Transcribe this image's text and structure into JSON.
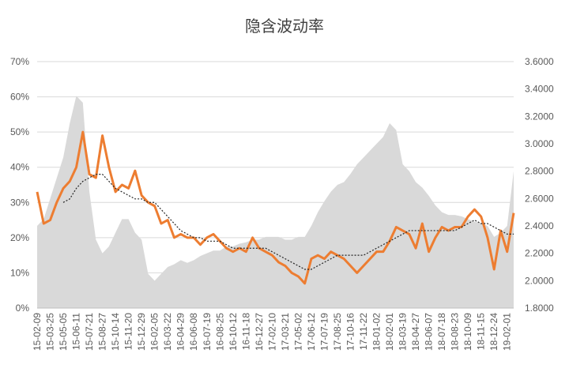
{
  "chart_data": {
    "type": "line",
    "title": "隐含波动率",
    "categories": [
      "15-02-09",
      null,
      "15-03-25",
      null,
      "15-05-05",
      null,
      "15-06-11",
      null,
      "15-07-21",
      null,
      "15-08-27",
      null,
      "15-10-14",
      null,
      "15-11-20",
      null,
      "15-12-29",
      null,
      "16-02-05",
      null,
      "16-03-22",
      null,
      "16-04-29",
      null,
      "16-06-08",
      null,
      "16-07-19",
      null,
      "16-08-25",
      null,
      "16-10-12",
      null,
      "16-11-18",
      null,
      "16-12-27",
      null,
      "17-02-10",
      null,
      "17-03-21",
      null,
      "17-05-02",
      null,
      "17-06-12",
      null,
      "17-07-19",
      null,
      "17-08-25",
      null,
      "17-10-16",
      null,
      "17-11-22",
      null,
      "18-01-02",
      null,
      "18-02-01",
      null,
      "18-03-19",
      null,
      "18-04-27",
      null,
      "18-06-07",
      null,
      "18-07-18",
      null,
      "18-08-23",
      null,
      "18-10-09",
      null,
      "18-11-15",
      null,
      "18-12-24",
      null,
      "19-02-01",
      null
    ],
    "series": [
      {
        "type": "area",
        "axis": "y2",
        "color": "#d9d9d9",
        "values": [
          2.4,
          2.45,
          2.6,
          2.75,
          2.9,
          3.15,
          3.35,
          3.3,
          2.65,
          2.3,
          2.2,
          2.25,
          2.35,
          2.45,
          2.45,
          2.35,
          2.3,
          2.05,
          2.0,
          2.05,
          2.1,
          2.12,
          2.15,
          2.13,
          2.15,
          2.18,
          2.2,
          2.22,
          2.22,
          2.25,
          2.25,
          2.27,
          2.28,
          2.3,
          2.3,
          2.32,
          2.32,
          2.32,
          2.3,
          2.3,
          2.32,
          2.32,
          2.4,
          2.5,
          2.58,
          2.65,
          2.7,
          2.72,
          2.78,
          2.85,
          2.9,
          2.95,
          3.0,
          3.05,
          3.15,
          3.1,
          2.85,
          2.8,
          2.72,
          2.68,
          2.62,
          2.55,
          2.5,
          2.48,
          2.48,
          2.47,
          2.45,
          2.43,
          2.42,
          2.4,
          2.32,
          2.35,
          2.4,
          2.8
        ]
      },
      {
        "type": "line",
        "color": "#ed7d31",
        "values": [
          33,
          24,
          25,
          30,
          34,
          36,
          40,
          50,
          38,
          37,
          49,
          40,
          33,
          35,
          34,
          39,
          32,
          30,
          29,
          24,
          25,
          20,
          21,
          20,
          20,
          18,
          20,
          21,
          19,
          17,
          16,
          17,
          16,
          20,
          17,
          16,
          15,
          13,
          12,
          10,
          9,
          7,
          14,
          15,
          14,
          16,
          15,
          14,
          12,
          10,
          12,
          14,
          16,
          16,
          19,
          23,
          22,
          21,
          17,
          24,
          16,
          20,
          23,
          22,
          23,
          23,
          26,
          28,
          26,
          20,
          11,
          22,
          16,
          27
        ]
      },
      {
        "type": "dotted",
        "color": "#262626",
        "values": [
          null,
          null,
          null,
          null,
          30,
          31,
          34,
          36,
          37,
          38,
          38,
          36,
          34,
          33,
          32,
          31,
          31,
          30,
          30,
          28,
          26,
          24,
          22,
          21,
          20,
          20,
          19,
          19,
          19,
          18,
          17,
          17,
          17,
          17,
          17,
          17,
          16,
          15,
          14,
          13,
          12,
          11,
          11,
          12,
          13,
          14,
          15,
          15,
          15,
          15,
          15,
          16,
          17,
          18,
          19,
          20,
          21,
          22,
          22,
          22,
          22,
          22,
          22,
          22,
          22,
          23,
          24,
          25,
          24,
          24,
          23,
          22,
          21,
          21
        ]
      }
    ],
    "ylim": [
      0,
      70
    ],
    "yticks": [
      {
        "value": 0,
        "label": "0%"
      },
      {
        "value": 10,
        "label": "10%"
      },
      {
        "value": 20,
        "label": "20%"
      },
      {
        "value": 30,
        "label": "30%"
      },
      {
        "value": 40,
        "label": "40%"
      },
      {
        "value": 50,
        "label": "50%"
      },
      {
        "value": 60,
        "label": "60%"
      },
      {
        "value": 70,
        "label": "70%"
      }
    ],
    "y2lim": [
      1.8,
      3.6
    ],
    "y2ticks": [
      {
        "value": 1.8,
        "label": "1.8000"
      },
      {
        "value": 2.0,
        "label": "2.0000"
      },
      {
        "value": 2.2,
        "label": "2.2000"
      },
      {
        "value": 2.4,
        "label": "2.4000"
      },
      {
        "value": 2.6,
        "label": "2.6000"
      },
      {
        "value": 2.8,
        "label": "2.8000"
      },
      {
        "value": 3.0,
        "label": "3.0000"
      },
      {
        "value": 3.2,
        "label": "3.2000"
      },
      {
        "value": 3.4,
        "label": "3.4000"
      },
      {
        "value": 3.6,
        "label": "3.6000"
      }
    ],
    "grid": true
  }
}
